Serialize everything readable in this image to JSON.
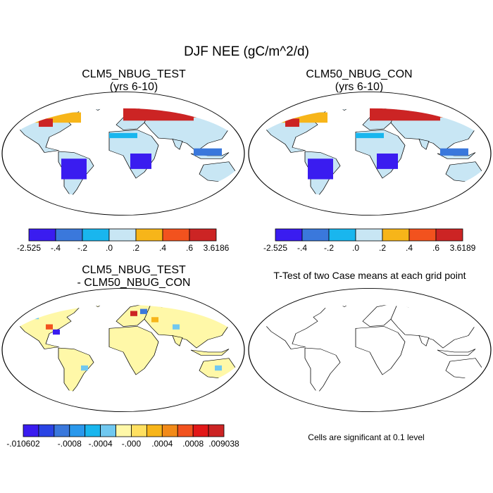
{
  "title": "DJF NEE (gC/m^2/d)",
  "panels": {
    "top_left": {
      "title_line1": "CLM5_NBUG_TEST",
      "title_line2": "(yrs 6-10)"
    },
    "top_right": {
      "title_line1": "CLM50_NBUG_CON",
      "title_line2": "(yrs 6-10)"
    },
    "bottom_left": {
      "title_line1": "CLM5_NBUG_TEST",
      "title_line2": "- CLM50_NBUG_CON"
    },
    "bottom_right": {
      "title_line1": "T-Test of two Case means at each grid point",
      "caption": "Cells are significant at 0.1 level"
    }
  },
  "colorbars": {
    "test": {
      "colors": [
        "#3a1cf0",
        "#3a78dc",
        "#19b6ee",
        "#c8e6f4",
        "#f7b519",
        "#f2521e",
        "#cc2424"
      ],
      "labels": [
        "-2.525",
        "-.4",
        "-.2",
        ".0",
        ".2",
        ".4",
        ".6",
        "3.6186"
      ]
    },
    "con": {
      "colors": [
        "#3a1cf0",
        "#3a78dc",
        "#19b6ee",
        "#c8e6f4",
        "#f7b519",
        "#f2521e",
        "#cc2424"
      ],
      "labels": [
        "-2.525",
        "-.4",
        "-.2",
        ".0",
        ".2",
        ".4",
        ".6",
        "3.6189"
      ]
    },
    "diff": {
      "colors": [
        "#3a1cf0",
        "#2a44e4",
        "#3a78dc",
        "#2a98ec",
        "#19b6ee",
        "#70c8f0",
        "#fff8a8",
        "#ffe060",
        "#f7b519",
        "#f28a18",
        "#f2521e",
        "#e21818",
        "#cc2424"
      ],
      "labels": [
        "-.010602",
        "-.0008",
        "-.0004",
        "-.000",
        ".0004",
        ".0008",
        ".009038"
      ]
    }
  }
}
